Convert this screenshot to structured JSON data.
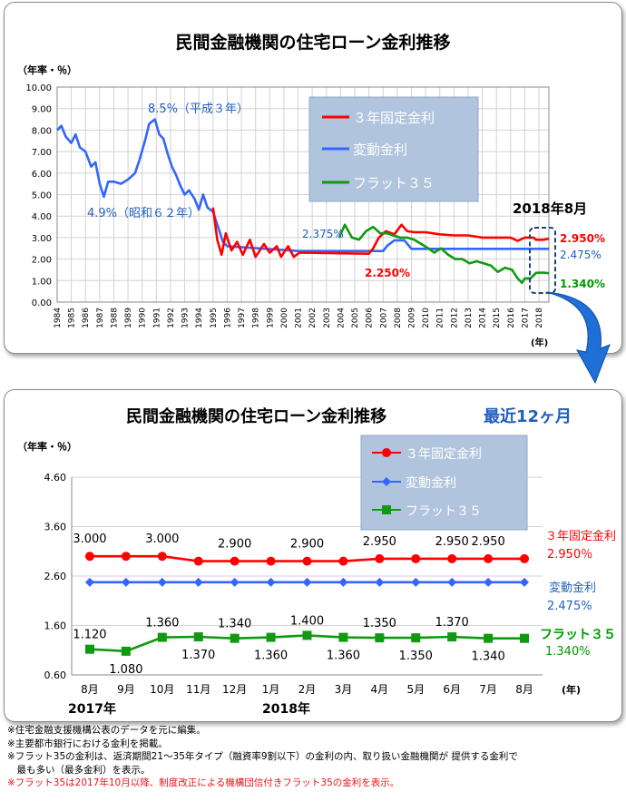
{
  "colors": {
    "fixed3": "#ff0000",
    "variable": "#3366ff",
    "flat35": "#119911",
    "flat35_dark": "#009900",
    "legend_bg": "#b0c4de",
    "accent_blue": "#1f5fbf",
    "arrow_blue": "#1e6fd6"
  },
  "top": {
    "title": "民間金融機関の住宅ローン金利推移",
    "unit_label": "（年率・％）",
    "year_label": "(年)",
    "highlight_label": "2018年8月",
    "legend": [
      "３年固定金利",
      "変動金利",
      "フラット３５"
    ],
    "right_labels": {
      "fixed3": "2.950%",
      "variable": "2.475%",
      "flat35": "1.340%"
    },
    "annotations": {
      "peak": "8.5%（平成３年）",
      "low": "4.9%（昭和６２年）",
      "v2375": "2.375%",
      "v2250": "2.250%"
    }
  },
  "bottom": {
    "title": "民間金融機関の住宅ローン金利推移",
    "subtitle": "最近12ヶ月",
    "unit_label": "（年率・％）",
    "year_label": "(年)",
    "legend": [
      "３年固定金利",
      "変動金利",
      "フラット３５"
    ],
    "right_labels": {
      "fixed3_name": "３年固定金利",
      "fixed3_value": "2.950％",
      "variable_name": "変動金利",
      "variable_value": "2.475%",
      "flat35_name": "フラット３５",
      "flat35_value": "1.340%"
    },
    "year_2017": "2017年",
    "year_2018": "2018年"
  },
  "notes": [
    "※住宅金融支援機構公表のデータを元に編集。",
    "※主要都市銀行における金利を掲載。",
    "※フラット35の金利は、返済期間21～35年タイプ（融資率9割以下）の金利の内、取り扱い金融機関が 提供する金利で",
    "　最も多い（最多金利）を表示。",
    "※フラット35は2017年10月以降、制度改正による機構団信付きフラット35の金利を表示。"
  ],
  "chart_data": [
    {
      "type": "line",
      "title": "民間金融機関の住宅ローン金利推移",
      "ylabel": "（年率・％）",
      "xlabel": "(年)",
      "ylim": [
        0,
        10
      ],
      "yticks": [
        "0.00",
        "1.00",
        "2.00",
        "3.00",
        "4.00",
        "5.00",
        "6.00",
        "7.00",
        "8.00",
        "9.00",
        "10.00"
      ],
      "xticks": [
        "1984",
        "1985",
        "1986",
        "1987",
        "1988",
        "1989",
        "1990",
        "1991",
        "1992",
        "1993",
        "1994",
        "1995",
        "1996",
        "1997",
        "1998",
        "1999",
        "2000",
        "2001",
        "2002",
        "2003",
        "2004",
        "2005",
        "2006",
        "2007",
        "2008",
        "2009",
        "2010",
        "2011",
        "2012",
        "2013",
        "2014",
        "2015",
        "2016",
        "2017",
        "2018"
      ],
      "xlim": [
        1984,
        2018.7
      ],
      "grid": true,
      "legend_position": "top-right",
      "series": [
        {
          "name": "変動金利",
          "points": [
            [
              1984.0,
              8.0
            ],
            [
              1984.3,
              8.2
            ],
            [
              1984.6,
              7.7
            ],
            [
              1985.0,
              7.4
            ],
            [
              1985.3,
              7.8
            ],
            [
              1985.6,
              7.2
            ],
            [
              1986.0,
              7.0
            ],
            [
              1986.4,
              6.3
            ],
            [
              1986.7,
              6.5
            ],
            [
              1987.0,
              5.5
            ],
            [
              1987.3,
              4.9
            ],
            [
              1987.6,
              5.6
            ],
            [
              1988.0,
              5.6
            ],
            [
              1988.5,
              5.5
            ],
            [
              1989.0,
              5.7
            ],
            [
              1989.5,
              6.0
            ],
            [
              1989.8,
              6.6
            ],
            [
              1990.2,
              7.5
            ],
            [
              1990.5,
              8.3
            ],
            [
              1990.9,
              8.5
            ],
            [
              1991.2,
              7.8
            ],
            [
              1991.5,
              7.6
            ],
            [
              1991.8,
              6.9
            ],
            [
              1992.1,
              6.3
            ],
            [
              1992.4,
              5.9
            ],
            [
              1992.7,
              5.4
            ],
            [
              1993.0,
              5.0
            ],
            [
              1993.3,
              5.2
            ],
            [
              1993.7,
              4.8
            ],
            [
              1994.0,
              4.3
            ],
            [
              1994.3,
              5.0
            ],
            [
              1994.6,
              4.4
            ],
            [
              1995.0,
              4.2
            ],
            [
              1995.4,
              3.4
            ],
            [
              1995.7,
              2.8
            ],
            [
              1996.0,
              2.6
            ],
            [
              2001.0,
              2.375
            ],
            [
              2007.0,
              2.375
            ],
            [
              2007.3,
              2.625
            ],
            [
              2007.8,
              2.875
            ],
            [
              2008.5,
              2.875
            ],
            [
              2009.0,
              2.475
            ],
            [
              2018.7,
              2.475
            ]
          ]
        },
        {
          "name": "３年固定金利",
          "points": [
            [
              1995.0,
              4.4
            ],
            [
              1995.3,
              2.9
            ],
            [
              1995.6,
              2.2
            ],
            [
              1995.9,
              3.2
            ],
            [
              1996.3,
              2.4
            ],
            [
              1996.7,
              2.8
            ],
            [
              1997.1,
              2.2
            ],
            [
              1997.6,
              2.9
            ],
            [
              1998.0,
              2.1
            ],
            [
              1998.6,
              2.7
            ],
            [
              1999.0,
              2.3
            ],
            [
              1999.5,
              2.6
            ],
            [
              1999.8,
              2.1
            ],
            [
              2000.3,
              2.6
            ],
            [
              2000.7,
              2.1
            ],
            [
              2001.1,
              2.3
            ],
            [
              2006.0,
              2.25
            ],
            [
              2006.3,
              2.5
            ],
            [
              2006.7,
              3.0
            ],
            [
              2007.2,
              3.3
            ],
            [
              2007.8,
              3.15
            ],
            [
              2008.3,
              3.6
            ],
            [
              2008.7,
              3.3
            ],
            [
              2009.2,
              3.25
            ],
            [
              2010.0,
              3.25
            ],
            [
              2011.0,
              3.15
            ],
            [
              2012.0,
              3.1
            ],
            [
              2013.0,
              3.1
            ],
            [
              2014.0,
              3.0
            ],
            [
              2015.0,
              3.0
            ],
            [
              2016.0,
              3.0
            ],
            [
              2016.5,
              2.85
            ],
            [
              2017.0,
              3.0
            ],
            [
              2017.6,
              3.0
            ],
            [
              2017.8,
              2.9
            ],
            [
              2018.3,
              2.9
            ],
            [
              2018.7,
              2.95
            ]
          ]
        },
        {
          "name": "フラット３５",
          "points": [
            [
              2003.9,
              3.0
            ],
            [
              2004.3,
              3.6
            ],
            [
              2004.8,
              3.0
            ],
            [
              2005.3,
              2.9
            ],
            [
              2005.8,
              3.3
            ],
            [
              2006.3,
              3.5
            ],
            [
              2006.8,
              3.2
            ],
            [
              2007.3,
              3.2
            ],
            [
              2007.7,
              3.1
            ],
            [
              2008.2,
              3.0
            ],
            [
              2008.7,
              3.0
            ],
            [
              2009.2,
              2.9
            ],
            [
              2009.7,
              2.7
            ],
            [
              2010.2,
              2.5
            ],
            [
              2010.6,
              2.3
            ],
            [
              2011.1,
              2.5
            ],
            [
              2011.6,
              2.2
            ],
            [
              2012.1,
              2.0
            ],
            [
              2012.6,
              2.0
            ],
            [
              2013.1,
              1.8
            ],
            [
              2013.6,
              1.9
            ],
            [
              2014.1,
              1.8
            ],
            [
              2014.6,
              1.7
            ],
            [
              2015.1,
              1.4
            ],
            [
              2015.6,
              1.6
            ],
            [
              2016.1,
              1.5
            ],
            [
              2016.5,
              1.1
            ],
            [
              2016.8,
              0.9
            ],
            [
              2017.0,
              1.1
            ],
            [
              2017.4,
              1.1
            ],
            [
              2017.8,
              1.36
            ],
            [
              2018.3,
              1.37
            ],
            [
              2018.7,
              1.34
            ]
          ]
        }
      ]
    },
    {
      "type": "line",
      "title": "民間金融機関の住宅ローン金利推移",
      "subtitle": "最近12ヶ月",
      "ylabel": "（年率・％）",
      "xlabel": "(年)",
      "ylim": [
        0.6,
        4.6
      ],
      "yticks": [
        "0.60",
        "1.60",
        "2.60",
        "3.60",
        "4.60"
      ],
      "categories": [
        "8月",
        "9月",
        "10月",
        "11月",
        "12月",
        "1月",
        "2月",
        "3月",
        "4月",
        "5月",
        "6月",
        "7月",
        "8月"
      ],
      "legend_position": "top-right",
      "series": [
        {
          "name": "３年固定金利",
          "values": [
            3.0,
            3.0,
            3.0,
            2.9,
            2.9,
            2.9,
            2.9,
            2.9,
            2.95,
            2.95,
            2.95,
            2.95,
            2.95
          ],
          "data_labels": [
            "3.000",
            "",
            "3.000",
            "",
            "2.900",
            "",
            "2.900",
            "",
            "2.950",
            "",
            "2.950",
            "2.950",
            ""
          ]
        },
        {
          "name": "変動金利",
          "values": [
            2.475,
            2.475,
            2.475,
            2.475,
            2.475,
            2.475,
            2.475,
            2.475,
            2.475,
            2.475,
            2.475,
            2.475,
            2.475
          ]
        },
        {
          "name": "フラット３５",
          "values": [
            1.12,
            1.08,
            1.36,
            1.37,
            1.34,
            1.36,
            1.4,
            1.36,
            1.35,
            1.35,
            1.37,
            1.34,
            1.34
          ],
          "data_labels": [
            "1.120",
            "1.080",
            "1.360",
            "1.370",
            "1.340",
            "1.360",
            "1.400",
            "1.360",
            "1.350",
            "1.350",
            "1.370",
            "1.340",
            ""
          ]
        }
      ]
    }
  ]
}
